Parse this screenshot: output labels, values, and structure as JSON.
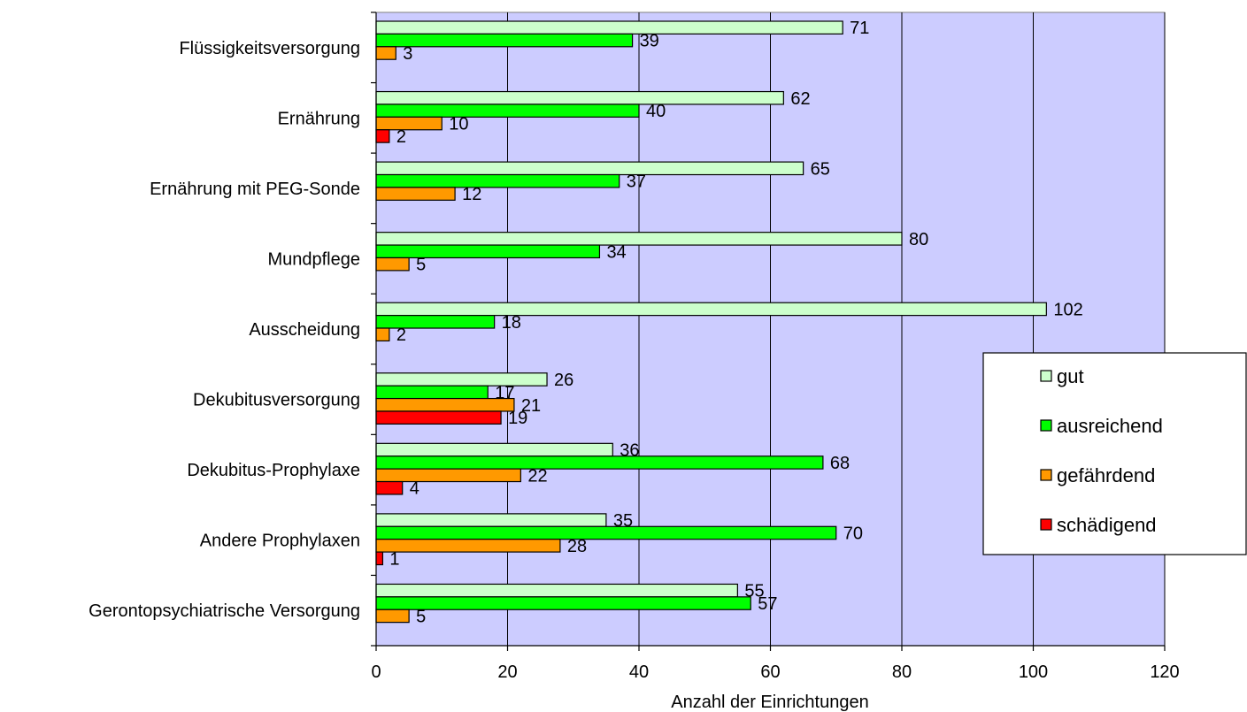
{
  "chart_data": {
    "type": "bar",
    "orientation": "horizontal",
    "categories": [
      "Flüssigkeitsversorgung",
      "Ernährung",
      "Ernährung mit PEG-Sonde",
      "Mundpflege",
      "Ausscheidung",
      "Dekubitusversorgung",
      "Dekubitus-Prophylaxe",
      "Andere Prophylaxen",
      "Gerontopsychiatrische Versorgung"
    ],
    "series": [
      {
        "name": "gut",
        "color": "#ccffcc",
        "values": [
          71,
          62,
          65,
          80,
          102,
          26,
          36,
          35,
          55
        ]
      },
      {
        "name": "ausreichend",
        "color": "#00ff00",
        "values": [
          39,
          40,
          37,
          34,
          18,
          17,
          68,
          70,
          57
        ]
      },
      {
        "name": "gefährdend",
        "color": "#ff9900",
        "values": [
          3,
          10,
          12,
          5,
          2,
          21,
          22,
          28,
          5
        ]
      },
      {
        "name": "schädigend",
        "color": "#ff0000",
        "values": [
          null,
          2,
          null,
          null,
          null,
          19,
          4,
          1,
          null
        ]
      }
    ],
    "xlabel": "Anzahl der Einrichtungen",
    "ylabel": "",
    "xlim": [
      0,
      120
    ],
    "xticks": [
      0,
      20,
      40,
      60,
      80,
      100,
      120
    ],
    "grid": true,
    "plot_background": "#ccccff",
    "legend_position": "right"
  }
}
